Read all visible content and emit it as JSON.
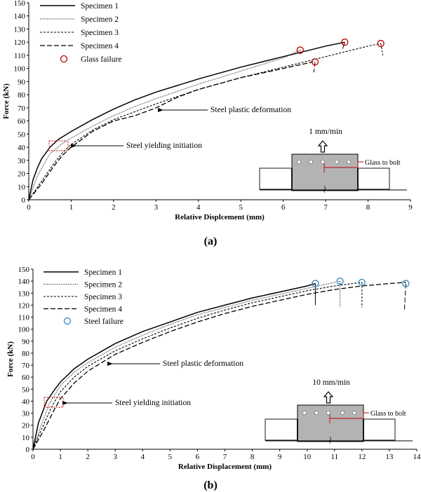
{
  "figure": {
    "panels": [
      "(a)",
      "(b)"
    ]
  },
  "chart_data": [
    {
      "type": "line",
      "caption": "(a)",
      "xlabel": "Relative Displcement (mm)",
      "ylabel": "Force (kN)",
      "xlim": [
        0,
        9
      ],
      "ylim": [
        0,
        150
      ],
      "xticks": [
        0,
        1,
        2,
        3,
        4,
        5,
        6,
        7,
        8,
        9
      ],
      "yticks": [
        0,
        10,
        20,
        30,
        40,
        50,
        60,
        70,
        80,
        90,
        100,
        110,
        120,
        130,
        140,
        150
      ],
      "series": [
        {
          "name": "Specimen  1",
          "style": "solid",
          "x": [
            0,
            0.1,
            0.2,
            0.3,
            0.5,
            0.7,
            1.0,
            1.5,
            2,
            2.5,
            3,
            4,
            5,
            6,
            6.5,
            7,
            7.45
          ],
          "y": [
            0,
            15,
            24,
            31,
            40,
            46,
            52,
            61,
            69,
            76,
            82,
            92,
            101,
            109,
            113,
            117,
            120
          ]
        },
        {
          "name": "Specimen  2",
          "style": "dotted",
          "x": [
            0,
            0.2,
            0.5,
            0.8,
            1.0,
            1.5,
            2,
            2.5,
            3,
            4,
            5,
            6,
            6.4
          ],
          "y": [
            0,
            18,
            35,
            43,
            47,
            56,
            64,
            71,
            77,
            88,
            98,
            108,
            114
          ]
        },
        {
          "name": "Specimen  3",
          "style": "dashed",
          "x": [
            0,
            0.3,
            0.6,
            0.8,
            1.0,
            1.5,
            2,
            3,
            4,
            5,
            6,
            7,
            7.5,
            8,
            8.3
          ],
          "y": [
            0,
            14,
            28,
            36,
            42,
            53,
            61,
            73,
            84,
            93,
            101,
            109,
            113,
            117,
            119
          ]
        },
        {
          "name": "Specimen  4",
          "style": "longdash",
          "x": [
            0,
            0.3,
            0.6,
            0.8,
            1.0,
            1.5,
            2,
            2.5,
            3,
            3.5,
            4,
            5,
            6,
            6.7
          ],
          "y": [
            0,
            12,
            26,
            34,
            40,
            52,
            60,
            64,
            70,
            78,
            84,
            93,
            100,
            105
          ]
        }
      ],
      "failure_marker": {
        "label": "Glass failure",
        "color": "#c00000",
        "points": [
          [
            7.45,
            120
          ],
          [
            6.4,
            114
          ],
          [
            8.3,
            119
          ],
          [
            6.75,
            105
          ]
        ],
        "drops": [
          [
            7.45,
            120,
            7.4,
            115
          ],
          [
            6.4,
            114,
            6.38,
            111
          ],
          [
            8.3,
            119,
            8.35,
            110
          ],
          [
            6.75,
            105,
            6.72,
            97
          ]
        ]
      },
      "annotations": {
        "steel_plastic": "Steel plastic deformation",
        "steel_yielding": "Steel yielding initiation",
        "rate": "1 mm/min",
        "inset_label": "Glass to bolt"
      }
    },
    {
      "type": "line",
      "caption": "(b)",
      "xlabel": "Relative Displacement (mm)",
      "ylabel": "Force (kN)",
      "xlim": [
        0,
        14
      ],
      "ylim": [
        0,
        150
      ],
      "xticks": [
        0,
        1,
        2,
        3,
        4,
        5,
        6,
        7,
        8,
        9,
        10,
        11,
        12,
        13,
        14
      ],
      "yticks": [
        0,
        10,
        20,
        30,
        40,
        50,
        60,
        70,
        80,
        90,
        100,
        110,
        120,
        130,
        140,
        150
      ],
      "series": [
        {
          "name": "Specimen  1",
          "style": "solid",
          "x": [
            0,
            0.2,
            0.5,
            0.8,
            1,
            1.5,
            2,
            3,
            4,
            5,
            6,
            7,
            8,
            9,
            10,
            10.3
          ],
          "y": [
            0,
            22,
            40,
            50,
            56,
            67,
            75,
            88,
            98,
            106,
            114,
            120,
            126,
            131,
            136,
            138
          ]
        },
        {
          "name": "Specimen  2",
          "style": "dotted",
          "x": [
            0,
            0.3,
            0.6,
            1,
            1.5,
            2,
            3,
            4,
            5,
            6,
            7,
            8,
            9,
            10,
            11,
            11.2
          ],
          "y": [
            0,
            20,
            38,
            53,
            64,
            72,
            85,
            95,
            104,
            112,
            118,
            124,
            129,
            134,
            139,
            140
          ]
        },
        {
          "name": "Specimen  3",
          "style": "dashed",
          "x": [
            0,
            0.3,
            0.7,
            1,
            1.5,
            2,
            3,
            4,
            5,
            6,
            7,
            8,
            9,
            10,
            11,
            12
          ],
          "y": [
            0,
            16,
            36,
            48,
            60,
            69,
            82,
            92,
            101,
            109,
            116,
            122,
            127,
            132,
            136,
            139
          ]
        },
        {
          "name": "Specimen  4",
          "style": "longdash",
          "x": [
            0,
            0.4,
            0.8,
            1,
            1.5,
            2,
            3,
            4,
            5,
            6,
            7,
            8,
            9,
            10,
            11,
            12,
            13,
            13.6
          ],
          "y": [
            0,
            16,
            34,
            42,
            55,
            65,
            79,
            89,
            98,
            106,
            113,
            119,
            124,
            129,
            133,
            136,
            138,
            139
          ]
        }
      ],
      "failure_marker": {
        "label": "Steel failure",
        "color": "#2e86c1",
        "points": [
          [
            10.3,
            138
          ],
          [
            11.2,
            140
          ],
          [
            12,
            139
          ],
          [
            13.6,
            138
          ]
        ],
        "drops": [
          [
            10.3,
            138,
            10.3,
            120
          ],
          [
            11.2,
            140,
            11.2,
            118
          ],
          [
            12,
            139,
            12,
            118
          ],
          [
            13.6,
            138,
            13.55,
            116
          ]
        ]
      },
      "annotations": {
        "steel_plastic": "Steel plastic deformation",
        "steel_yielding": "Steel yielding initiation",
        "rate": "10 mm/min",
        "inset_label": "Glass to bolt"
      }
    }
  ]
}
